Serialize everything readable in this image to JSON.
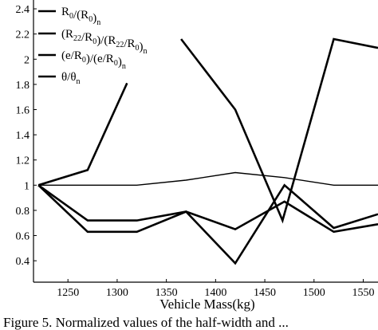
{
  "chart_data": {
    "type": "line",
    "title": "",
    "xlabel": "Vehicle Mass(kg)",
    "ylabel": "",
    "xlim": [
      1215,
      1565
    ],
    "ylim": [
      0.23,
      2.47
    ],
    "xticks": [
      1250,
      1300,
      1350,
      1400,
      1450,
      1500,
      1550
    ],
    "yticks": [
      0.4,
      0.6,
      0.8,
      1,
      1.2,
      1.4,
      1.6,
      1.8,
      2,
      2.2,
      2.4
    ],
    "legend_position": "top-left",
    "legend": [
      {
        "parts": [
          [
            "R",
            false
          ],
          [
            "0",
            true
          ],
          [
            "/(R",
            false
          ],
          [
            "0",
            true
          ],
          [
            ")",
            false
          ],
          [
            "n",
            true
          ]
        ]
      },
      {
        "parts": [
          [
            "(R",
            false
          ],
          [
            "22",
            true
          ],
          [
            "/R",
            false
          ],
          [
            "0",
            true
          ],
          [
            ")/(R",
            false
          ],
          [
            "22",
            true
          ],
          [
            "/R",
            false
          ],
          [
            "0",
            true
          ],
          [
            ")",
            false
          ],
          [
            "n",
            true
          ]
        ]
      },
      {
        "parts": [
          [
            "(e/R",
            false
          ],
          [
            "0",
            true
          ],
          [
            ")/(e/R",
            false
          ],
          [
            "0",
            true
          ],
          [
            ")",
            false
          ],
          [
            "n",
            true
          ]
        ]
      },
      {
        "parts": [
          [
            "θ/θ",
            false
          ],
          [
            "n",
            true
          ]
        ]
      }
    ],
    "series": [
      {
        "name": "R0/(R0)n",
        "stroke": 1.4,
        "x": [
          1220,
          1270,
          1320,
          1370,
          1420,
          1470,
          1520,
          1565
        ],
        "y": [
          1.0,
          1.0,
          1.0,
          1.04,
          1.1,
          1.06,
          1.0,
          1.0
        ]
      },
      {
        "name": "(R22/R0)/(R22/R0)n",
        "stroke": 2.6,
        "x": [
          1220,
          1270,
          1320,
          1370,
          1420,
          1470,
          1520,
          1565
        ],
        "y": [
          1.0,
          0.72,
          0.72,
          0.79,
          0.65,
          0.87,
          0.63,
          0.69
        ]
      },
      {
        "name": "(e/R0)/(e/R0)n",
        "stroke": 2.6,
        "x": [
          1220,
          1270,
          1320,
          1370,
          1420,
          1470,
          1520,
          1565
        ],
        "y": [
          1.0,
          0.63,
          0.63,
          0.79,
          0.38,
          1.0,
          0.66,
          0.77
        ]
      },
      {
        "name": "θ/θn",
        "stroke": 2.6,
        "x": [
          1220,
          1270,
          1310
        ],
        "y": [
          1.0,
          1.12,
          1.81
        ]
      },
      {
        "name": "unlabeled",
        "stroke": 2.6,
        "x": [
          1365,
          1420,
          1468,
          1520,
          1565
        ],
        "y": [
          2.16,
          1.6,
          0.72,
          2.16,
          2.09
        ]
      }
    ]
  },
  "caption": "Figure 5.  Normalized values of the half-width and ..."
}
